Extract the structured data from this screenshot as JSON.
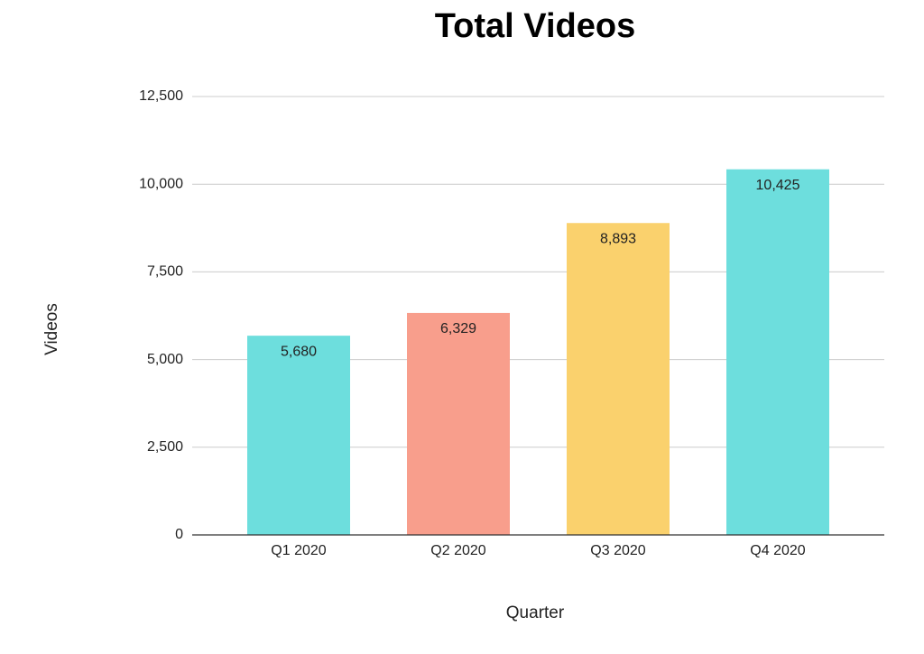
{
  "chart_data": {
    "type": "bar",
    "title": "Total Videos",
    "x_label": "Quarter",
    "y_label": "Videos",
    "categories": [
      "Q1 2020",
      "Q2 2020",
      "Q3 2020",
      "Q4 2020"
    ],
    "values": [
      5680,
      6329,
      8893,
      10425
    ],
    "value_labels": [
      "5,680",
      "6,329",
      "8,893",
      "10,425"
    ],
    "colors": [
      "#6ddedd",
      "#f89e8c",
      "#fad16d",
      "#6ddedd"
    ],
    "ylim": [
      0,
      12500
    ],
    "yticks": [
      0,
      {
        "value": 2500,
        "label": "2,500"
      },
      {
        "value": 5000,
        "label": "5,000"
      },
      {
        "value": 7500,
        "label": "7,500"
      },
      {
        "value": 10000,
        "label": "10,000"
      },
      {
        "value": 12500,
        "label": "12,500"
      }
    ],
    "grid": true
  }
}
